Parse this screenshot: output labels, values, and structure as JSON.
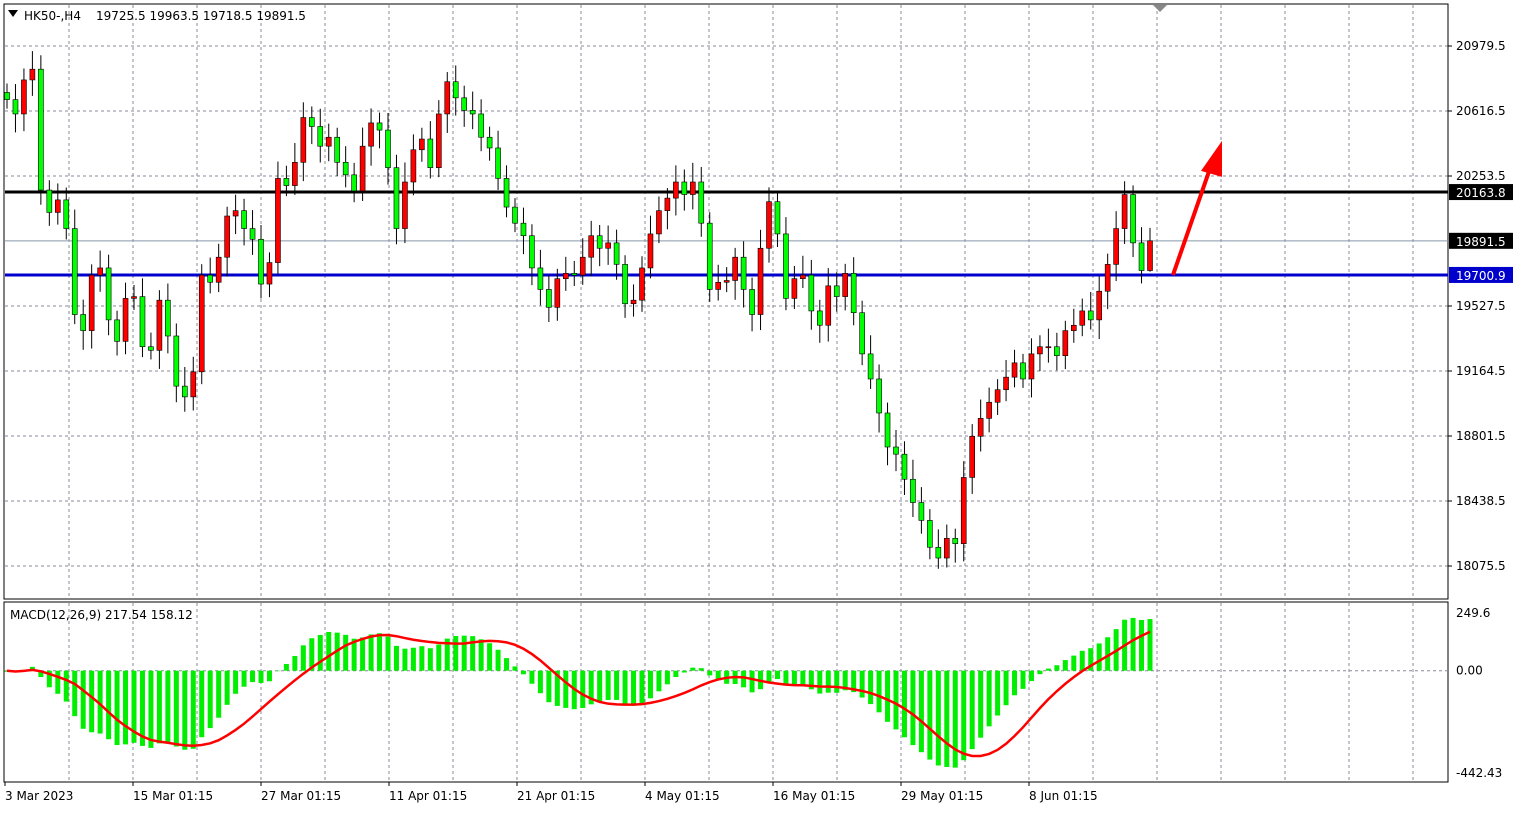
{
  "chart_data": {
    "type": "candlestick",
    "title": "HK50-,H4",
    "ohlc_header": [
      "19725.5",
      "19963.5",
      "19718.5",
      "19891.5"
    ],
    "colors": {
      "bull": "#ff0000",
      "bear": "#00ff00",
      "wick": "#000000",
      "grid": "#8a8a9a",
      "macd_hist": "#00ee00",
      "macd_signal": "#ff0000",
      "support_line": "#0000cc",
      "resistance_line": "#000000",
      "arrow": "#ff0000"
    },
    "ylim": [
      18075.5,
      20979.5
    ],
    "y_ticks": [
      "20979.5",
      "20616.5",
      "20253.5",
      "19527.5",
      "19164.5",
      "18801.5",
      "18438.5",
      "18075.5"
    ],
    "x_ticks": [
      "3 Mar 2023",
      "15 Mar 01:15",
      "27 Mar 01:15",
      "11 Apr 01:15",
      "21 Apr 01:15",
      "4 May 01:15",
      "16 May 01:15",
      "29 May 01:15",
      "8 Jun 01:15"
    ],
    "closes": [
      20680,
      20600,
      20790,
      20850,
      20175,
      20050,
      20120,
      19960,
      19480,
      19390,
      19700,
      19740,
      19450,
      19330,
      19570,
      19580,
      19300,
      19280,
      19560,
      19360,
      19080,
      19020,
      19160,
      19700,
      19660,
      19800,
      20030,
      20060,
      19960,
      19900,
      19650,
      19770,
      20240,
      20200,
      20330,
      20580,
      20530,
      20420,
      20470,
      20330,
      20260,
      20170,
      20420,
      20550,
      20510,
      20300,
      19960,
      20220,
      20400,
      20460,
      20300,
      20600,
      20780,
      20690,
      20620,
      20600,
      20470,
      20410,
      20240,
      20080,
      19990,
      19920,
      19740,
      19620,
      19520,
      19680,
      19710,
      19700,
      19800,
      19920,
      19850,
      19880,
      19760,
      19540,
      19560,
      19740,
      19930,
      20060,
      20130,
      20220,
      20150,
      20220,
      19990,
      19620,
      19660,
      19670,
      19800,
      19620,
      19480,
      19850,
      20110,
      19930,
      19570,
      19680,
      19700,
      19500,
      19420,
      19640,
      19580,
      19710,
      19490,
      19260,
      19120,
      18930,
      18740,
      18700,
      18560,
      18430,
      18330,
      18180,
      18120,
      18230,
      18200,
      18570,
      18800,
      18900,
      18990,
      19060,
      19130,
      19210,
      19120,
      19260,
      19300,
      19300,
      19250,
      19390,
      19420,
      19500,
      19450,
      19610,
      19760,
      19960,
      20150,
      19880,
      19725.5,
      19891.5
    ],
    "last_high": 19963.5,
    "last_low": 19718.5,
    "horizontal_lines": [
      {
        "price": 20163.8,
        "label": "20163.8",
        "color": "#000000"
      },
      {
        "price": 19891.5,
        "label": "19891.5",
        "color": "#8899aa"
      },
      {
        "price": 19700.9,
        "label": "19700.9",
        "color": "#0000cc"
      }
    ],
    "arrow": {
      "direction": "up",
      "from_price": 19700.9,
      "to_price": 20450
    },
    "macd": {
      "label": "MACD(12,26,9) 217.54 158.12",
      "params": [
        12,
        26,
        9
      ],
      "current_main": 217.54,
      "current_signal": 158.12,
      "ylim": [
        -442.43,
        249.6
      ],
      "y_ticks": [
        "249.6",
        "0.00",
        "-442.43"
      ]
    }
  }
}
